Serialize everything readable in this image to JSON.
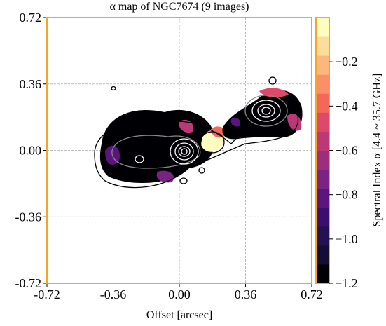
{
  "chart_data": {
    "type": "image-map",
    "title": "α map of NGC7674 (9 images)",
    "x_label": "Offset [arcsec]",
    "xlim": [
      -0.72,
      0.72
    ],
    "ylim": [
      -0.72,
      0.72
    ],
    "xticks": [
      -0.72,
      -0.36,
      {
        "value": 0,
        "label": "0.00"
      },
      0.36,
      0.72
    ],
    "yticks": [
      -0.72,
      -0.36,
      {
        "value": 0,
        "label": "0.00"
      },
      0.36,
      0.72
    ],
    "grid": true,
    "frame_color": "#f5a623",
    "colorbar": {
      "label": "Spectral Index α [4.4 ~ 35.7 GHz]",
      "clim": [
        -1.2,
        0
      ],
      "ticks": [
        {
          "value": -1.2,
          "label": "−1.2"
        },
        {
          "value": -1.0,
          "label": "−1.0"
        },
        {
          "value": -0.8,
          "label": "−0.8"
        },
        {
          "value": -0.6,
          "label": "−0.6"
        },
        {
          "value": -0.4,
          "label": "−0.4"
        },
        {
          "value": -0.2,
          "label": "−0.2"
        }
      ],
      "colors": [
        "#000004",
        "#140e36",
        "#231151",
        "#3b0f70",
        "#5a167e",
        "#7a2382",
        "#9b2e7e",
        "#bc3978",
        "#dd4a69",
        "#f4685c",
        "#fb8f6a",
        "#fdb77e",
        "#fcdd99",
        "#fcfdbf"
      ]
    }
  }
}
